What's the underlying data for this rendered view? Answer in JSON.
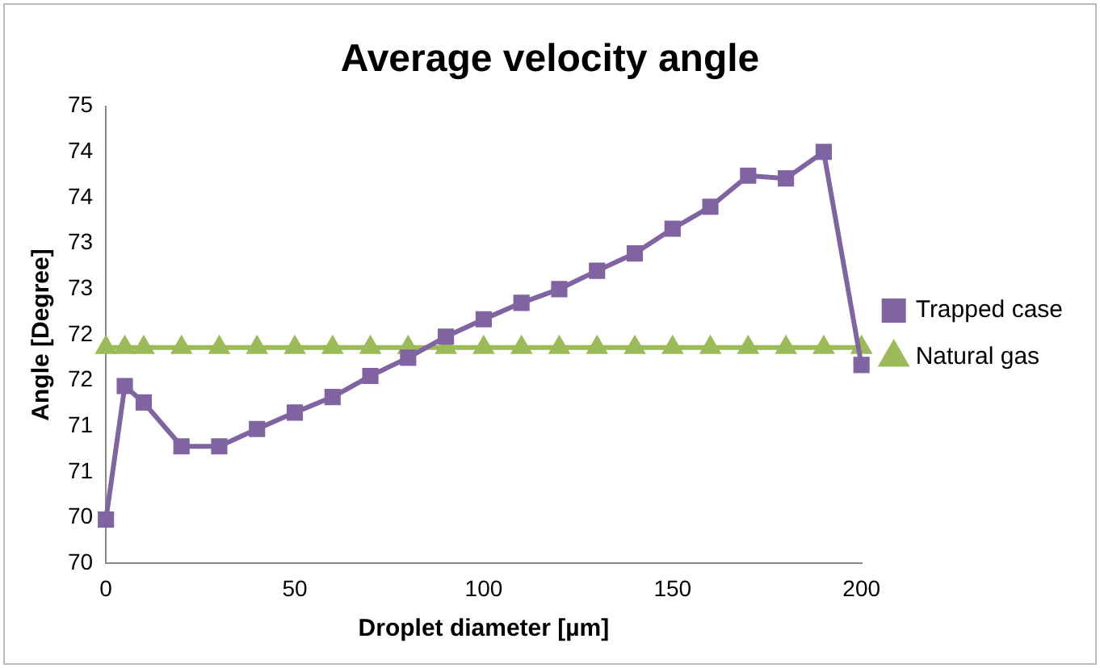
{
  "chart_data": {
    "type": "line",
    "title": "Average velocity angle",
    "xlabel": "Droplet diameter [µm]",
    "ylabel": "Angle [Degree]",
    "x": [
      0,
      5,
      10,
      20,
      30,
      40,
      50,
      60,
      70,
      80,
      90,
      100,
      110,
      120,
      130,
      140,
      150,
      160,
      170,
      180,
      190,
      200
    ],
    "series": [
      {
        "name": "Trapped case",
        "color": "#8064a2",
        "marker": "square",
        "values": [
          69.98,
          71.44,
          71.26,
          70.78,
          70.78,
          70.97,
          71.15,
          71.32,
          71.55,
          71.75,
          71.98,
          72.17,
          72.35,
          72.5,
          72.7,
          72.89,
          73.16,
          73.4,
          73.74,
          73.71,
          74.0,
          71.67
        ]
      },
      {
        "name": "Natural gas",
        "color": "#9bbb59",
        "marker": "triangle",
        "values": [
          71.86,
          71.86,
          71.86,
          71.86,
          71.86,
          71.86,
          71.86,
          71.86,
          71.86,
          71.86,
          71.86,
          71.86,
          71.86,
          71.86,
          71.86,
          71.86,
          71.86,
          71.86,
          71.86,
          71.86,
          71.86,
          71.86
        ]
      }
    ],
    "xlim": [
      0,
      200
    ],
    "xticks": [
      0,
      50,
      100,
      150,
      200
    ],
    "ylim": [
      69.5,
      74.5
    ],
    "yticks": [
      {
        "value": 69.5,
        "label": "70"
      },
      70,
      {
        "value": 70.5,
        "label": "71"
      },
      71,
      {
        "value": 71.5,
        "label": "72"
      },
      72,
      {
        "value": 72.5,
        "label": "73"
      },
      73,
      {
        "value": 73.5,
        "label": "74"
      },
      74,
      {
        "value": 74.5,
        "label": "75"
      }
    ],
    "grid": false,
    "legend": "right"
  }
}
